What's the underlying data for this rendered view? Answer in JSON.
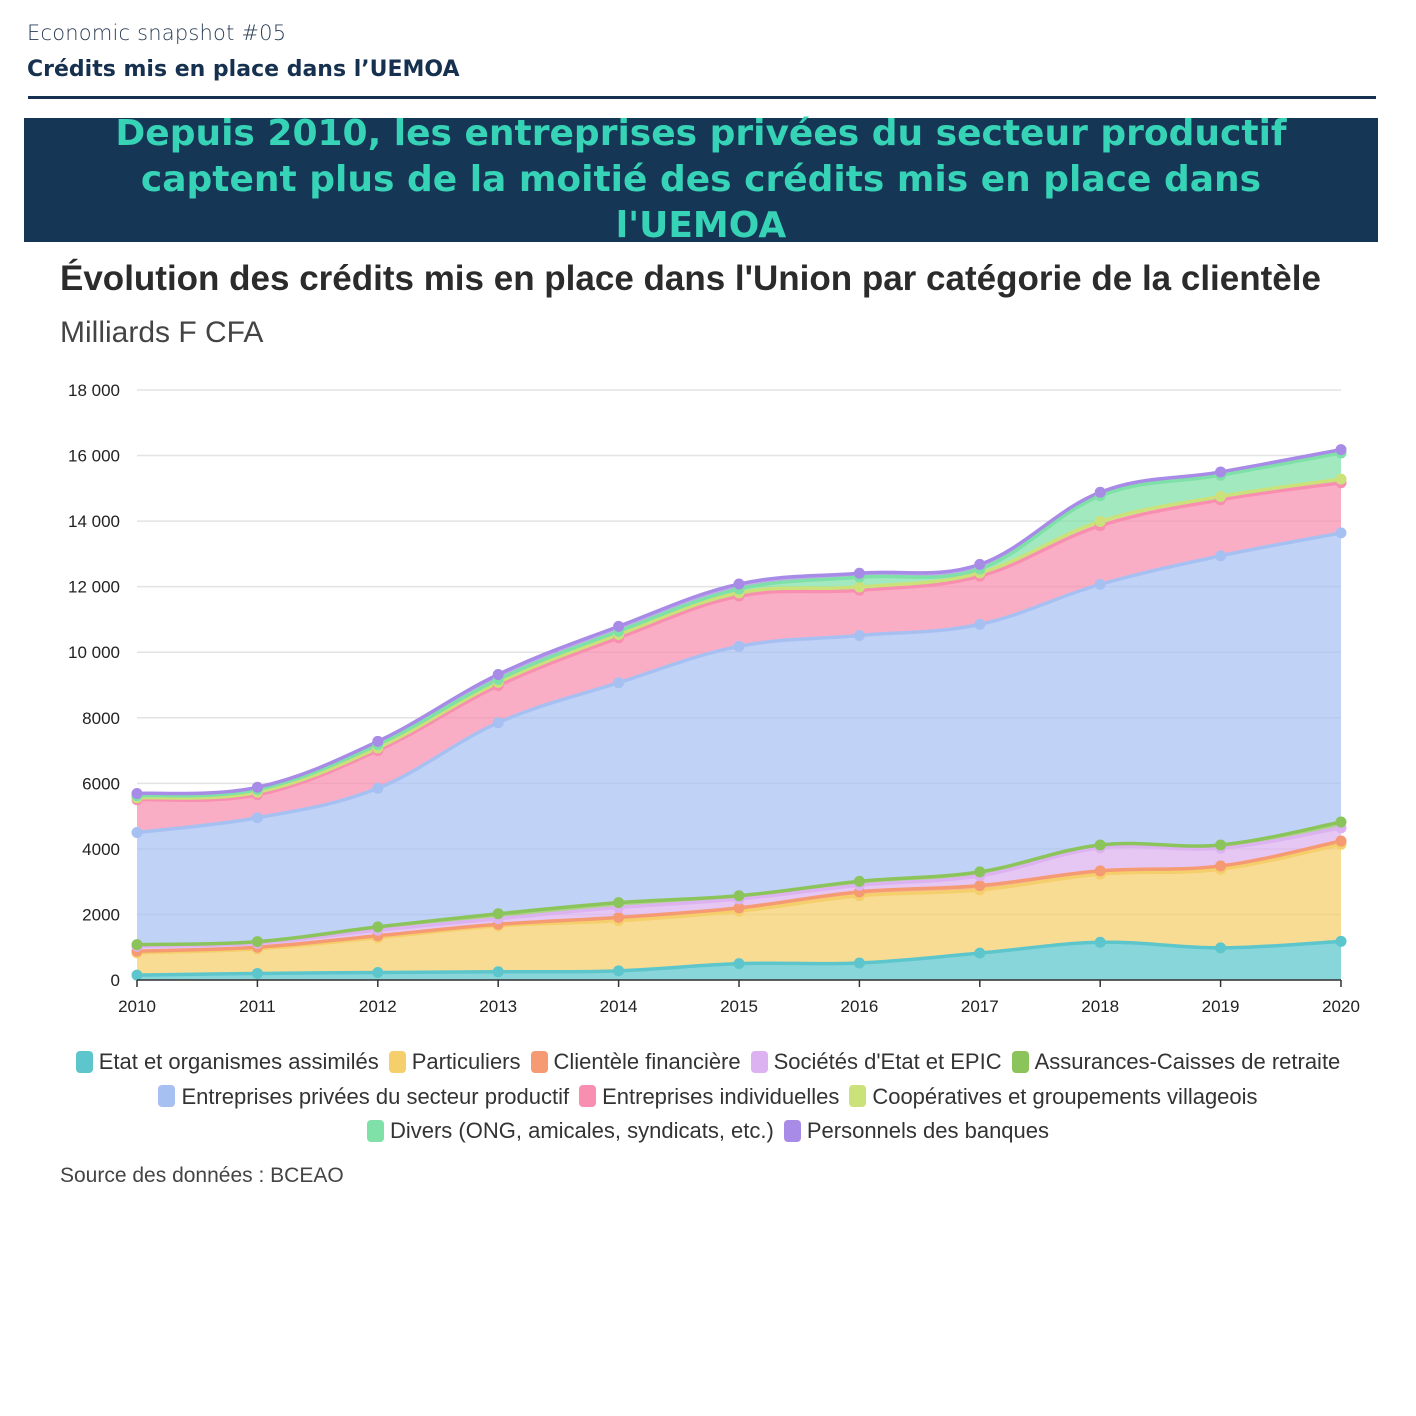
{
  "header": {
    "kicker": "Economic snapshot #05",
    "title": "Crédits mis en place dans l’UEMOA"
  },
  "banner": {
    "headline": "Depuis 2010, les entreprises privées du secteur productif captent plus de la moitié des crédits mis en place dans l'UEMOA"
  },
  "source": "Source des données : BCEAO",
  "colors": {
    "banner_bg": "#163656",
    "banner_text": "#36d3b6",
    "header_text": "#16304f"
  },
  "chart_data": {
    "type": "area",
    "stacked": true,
    "title": "Évolution des crédits mis en place dans l'Union par catégorie de la clientèle",
    "subtitle": "Milliards F CFA",
    "x": [
      "2010",
      "2011",
      "2012",
      "2013",
      "2014",
      "2015",
      "2016",
      "2017",
      "2018",
      "2019",
      "2020"
    ],
    "ylim": [
      0,
      18000
    ],
    "yticks": [
      "0",
      "2000",
      "4000",
      "6000",
      "8000",
      "10 000",
      "12 000",
      "14 000",
      "16 000",
      "18 000"
    ],
    "grid": true,
    "legend_position": "bottom",
    "series": [
      {
        "name": "Etat et organismes assimilés",
        "color": "#5cc6cc",
        "values": [
          150,
          200,
          230,
          250,
          280,
          500,
          520,
          820,
          1150,
          980,
          1180
        ]
      },
      {
        "name": "Particuliers",
        "color": "#f5cf6b",
        "values": [
          680,
          750,
          1060,
          1400,
          1530,
          1600,
          2050,
          1930,
          2080,
          2400,
          2960
        ]
      },
      {
        "name": "Clientèle financière",
        "color": "#f59a72",
        "values": [
          50,
          50,
          60,
          50,
          100,
          100,
          120,
          130,
          100,
          100,
          100
        ]
      },
      {
        "name": "Sociétés d'Etat et EPIC",
        "color": "#ddb2f0",
        "values": [
          150,
          120,
          170,
          170,
          300,
          270,
          200,
          300,
          700,
          540,
          400
        ]
      },
      {
        "name": "Assurances-Caisses de retraite",
        "color": "#8bc45a",
        "values": [
          50,
          50,
          100,
          150,
          150,
          100,
          120,
          120,
          90,
          100,
          180
        ]
      },
      {
        "name": "Entreprises privées du secteur productif",
        "color": "#a7c0f2",
        "values": [
          3420,
          3780,
          4230,
          5830,
          6710,
          7610,
          7500,
          7550,
          7950,
          8820,
          8820
        ]
      },
      {
        "name": "Entreprises individuelles",
        "color": "#f88fb0",
        "values": [
          1000,
          700,
          1150,
          1130,
          1370,
          1530,
          1380,
          1470,
          1790,
          1710,
          1530
        ]
      },
      {
        "name": "Coopératives et groupements villageois",
        "color": "#cbe27a",
        "values": [
          60,
          80,
          80,
          100,
          100,
          100,
          100,
          100,
          130,
          100,
          110
        ]
      },
      {
        "name": "Divers (ONG, amicales, syndicats, etc.)",
        "color": "#7fe0a8",
        "values": [
          60,
          80,
          100,
          90,
          100,
          120,
          300,
          120,
          780,
          650,
          800
        ]
      },
      {
        "name": "Personnels des banques",
        "color": "#a78be6",
        "values": [
          70,
          70,
          100,
          150,
          150,
          150,
          120,
          140,
          110,
          100,
          100
        ]
      }
    ]
  }
}
